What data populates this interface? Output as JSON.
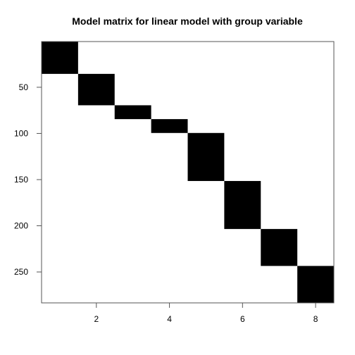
{
  "chart_data": {
    "type": "heatmap",
    "title": "Model matrix for linear model with group variable",
    "xlabel": "",
    "ylabel": "",
    "xlim": [
      0.5,
      8.5
    ],
    "ylim": [
      283,
      1
    ],
    "x_ticks": [
      2,
      4,
      6,
      8
    ],
    "y_ticks": [
      50,
      100,
      150,
      200,
      250
    ],
    "grid": false,
    "fill_color": "#000000",
    "blocks": [
      {
        "column": 1,
        "row_start": 1,
        "row_end": 35
      },
      {
        "column": 2,
        "row_start": 36,
        "row_end": 69
      },
      {
        "column": 3,
        "row_start": 70,
        "row_end": 84
      },
      {
        "column": 4,
        "row_start": 85,
        "row_end": 99
      },
      {
        "column": 5,
        "row_start": 100,
        "row_end": 151
      },
      {
        "column": 6,
        "row_start": 152,
        "row_end": 203
      },
      {
        "column": 7,
        "row_start": 204,
        "row_end": 243
      },
      {
        "column": 8,
        "row_start": 244,
        "row_end": 283
      }
    ]
  }
}
